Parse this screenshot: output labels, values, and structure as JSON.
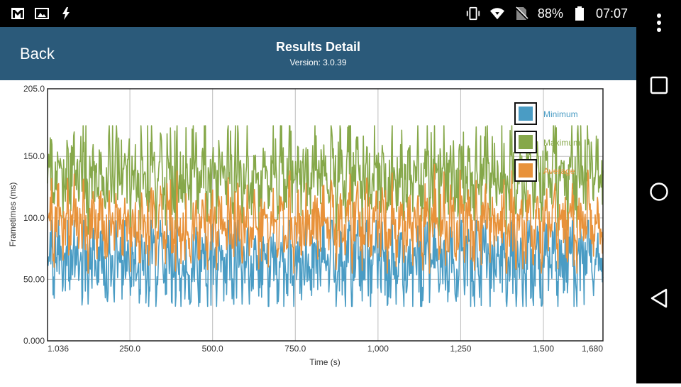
{
  "status_bar": {
    "icons_left": [
      "gmail-icon",
      "image-icon",
      "flash-icon"
    ],
    "icons_right": [
      "vibrate-icon",
      "wifi-icon",
      "no-sim-icon"
    ],
    "battery": "88%",
    "time": "07:07"
  },
  "header": {
    "back_label": "Back",
    "title": "Results Detail",
    "version": "Version: 3.0.39",
    "background": "#2b5a7a"
  },
  "nav": {
    "icons": [
      "more-icon",
      "recents-icon",
      "home-icon",
      "back-icon"
    ]
  },
  "chart_data": {
    "type": "line",
    "title": "",
    "xlabel": "Time (s)",
    "ylabel": "Frametimes (ms)",
    "xlim": [
      1.036,
      1680
    ],
    "ylim": [
      0,
      205
    ],
    "xticks": [
      1.036,
      250,
      500,
      750,
      1000,
      1250,
      1500,
      1680
    ],
    "xtick_labels": [
      "1.036",
      "250.0",
      "500.0",
      "750.0",
      "1,000",
      "1,250",
      "1,500",
      "1,680"
    ],
    "yticks": [
      0,
      50,
      100,
      150,
      205
    ],
    "ytick_labels": [
      "0.000",
      "50.00",
      "100.0",
      "150.0",
      "205.0"
    ],
    "grid": true,
    "legend_position": "top-right",
    "series": [
      {
        "name": "Minimum",
        "color": "#4a9cc4",
        "min": 28,
        "max": 98,
        "typical": [
          48,
          85
        ]
      },
      {
        "name": "Maximum",
        "color": "#86a84a",
        "min": 70,
        "max": 175,
        "typical": [
          90,
          165
        ]
      },
      {
        "name": "Average",
        "color": "#e8923a",
        "min": 55,
        "max": 150,
        "typical": [
          70,
          140
        ]
      }
    ]
  }
}
